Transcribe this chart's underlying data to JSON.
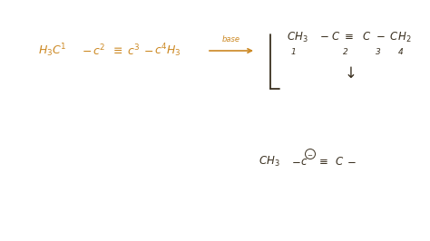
{
  "background_color": "#ffffff",
  "orange_color": "#cc8822",
  "dark_color": "#3a3020",
  "fig_width": 4.74,
  "fig_height": 2.66,
  "dpi": 100
}
